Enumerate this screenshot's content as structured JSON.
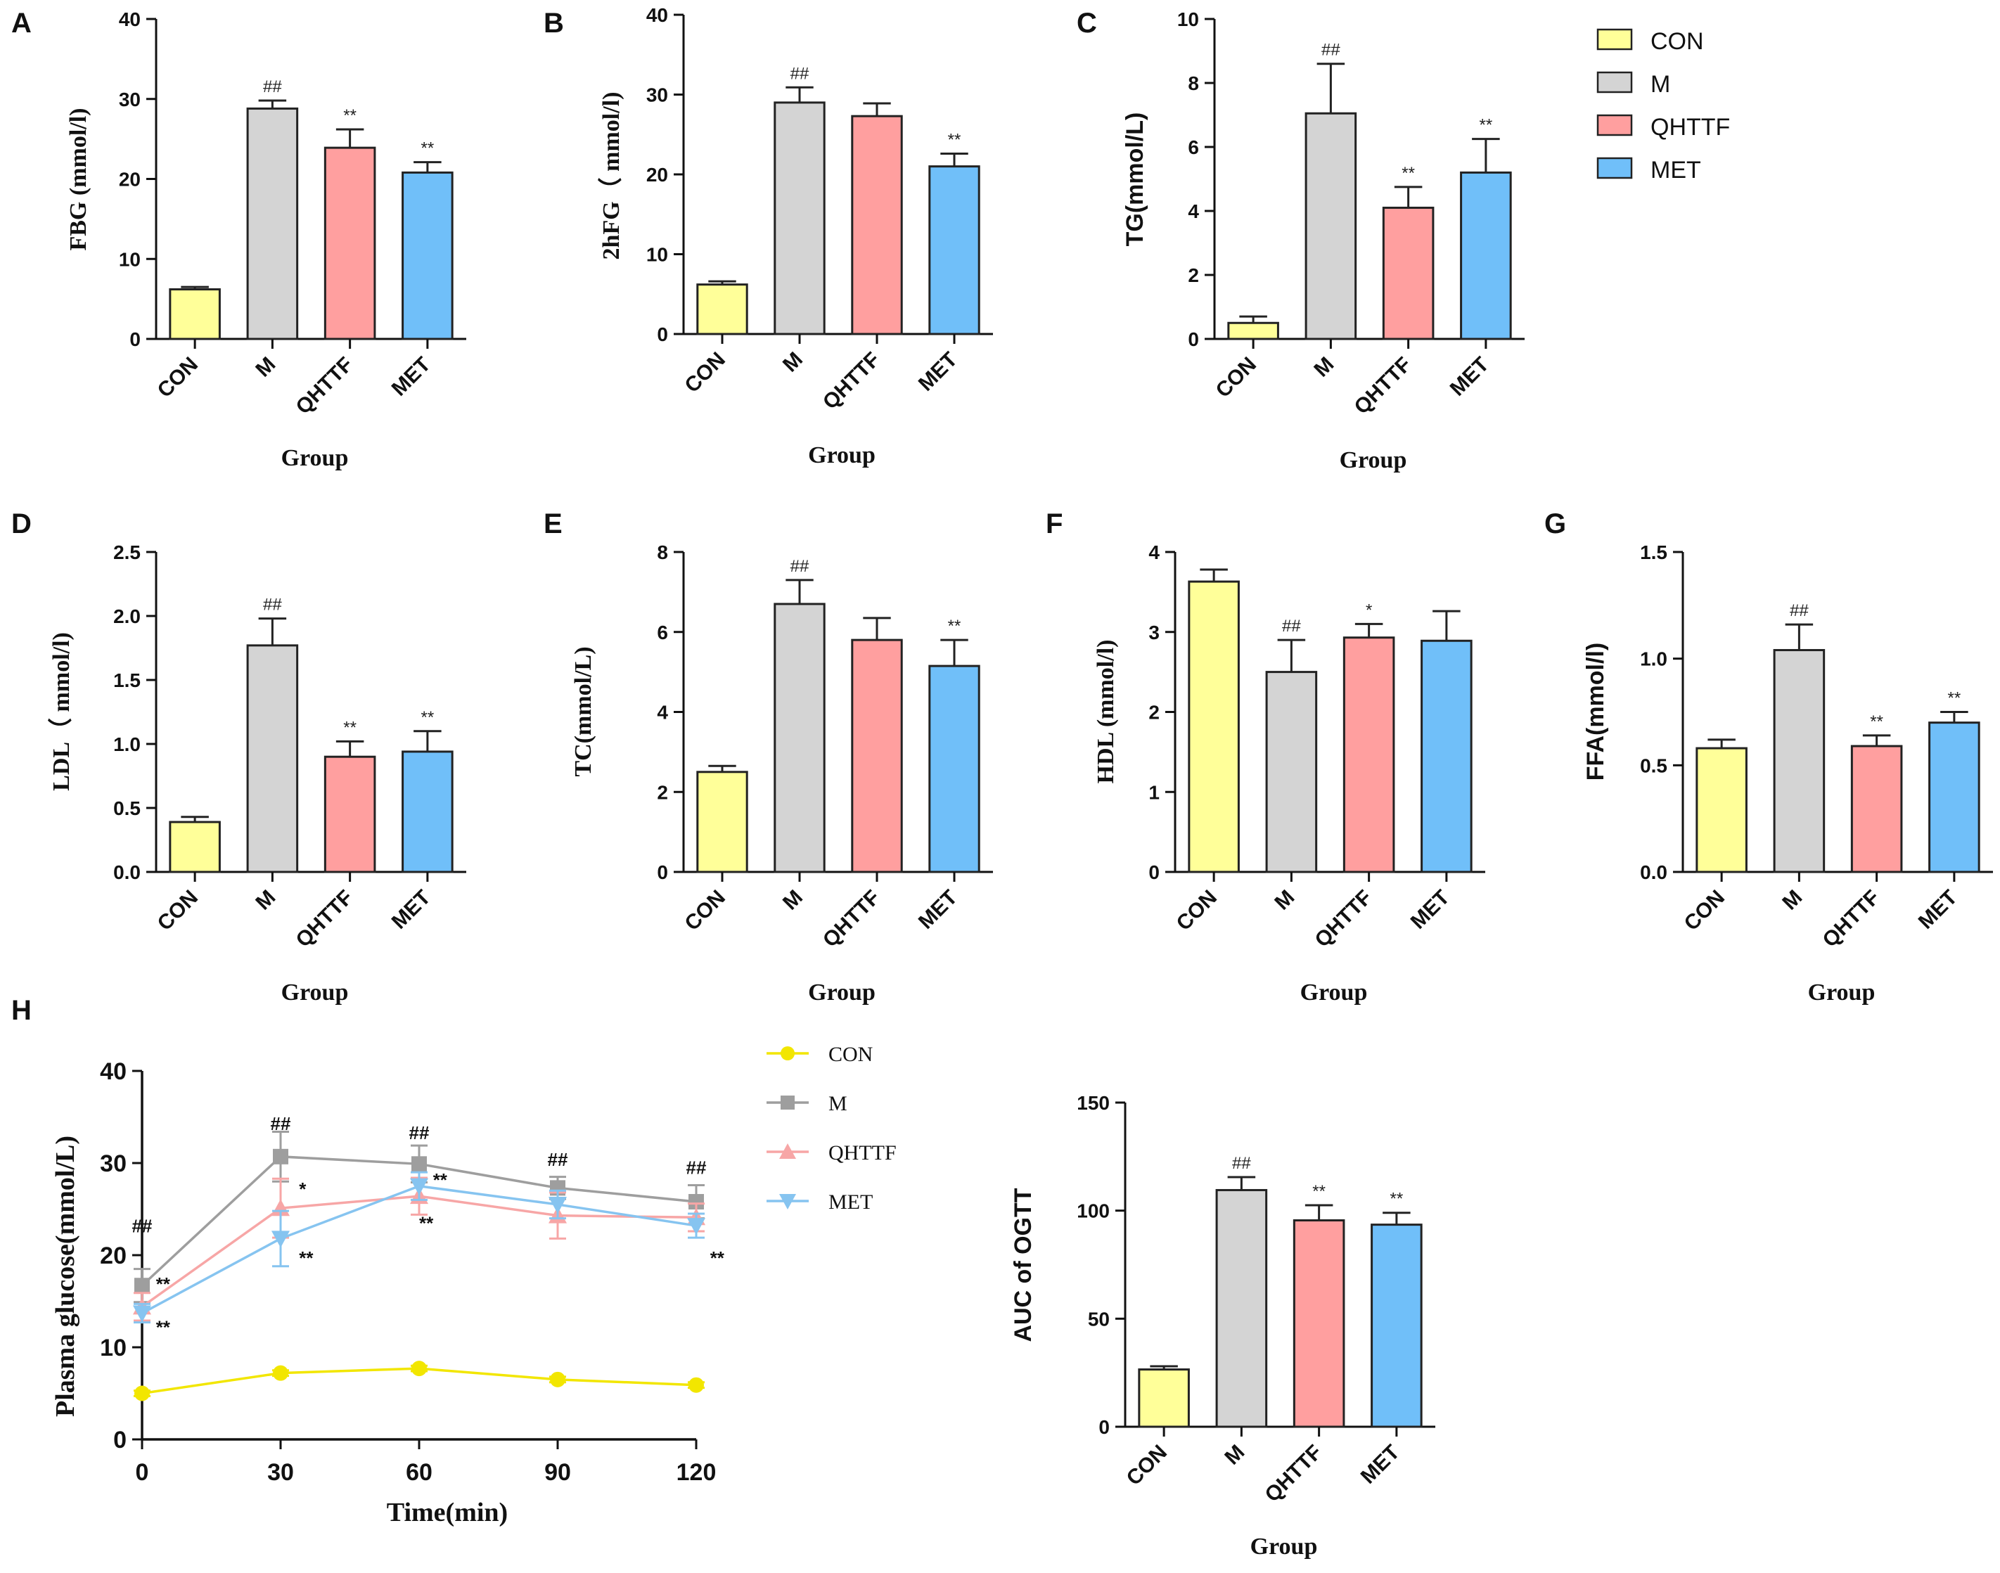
{
  "groups": [
    "CON",
    "M",
    "QHTTF",
    "MET"
  ],
  "colors": {
    "CON": "#ffff99",
    "M": "#d4d4d4",
    "QHTTF": "#ff9f9f",
    "MET": "#70bff9",
    "CON_line": "#f2e600",
    "M_line": "#9e9e9e",
    "QHTTF_line": "#f7a6a6",
    "MET_line": "#86c4f0"
  },
  "legend": {
    "items": [
      "CON",
      "M",
      "QHTTF",
      "MET"
    ]
  },
  "chart_data": [
    {
      "id": "A",
      "letter": "A",
      "type": "bar",
      "categories": [
        "CON",
        "M",
        "QHTTF",
        "MET"
      ],
      "values": [
        6.2,
        28.8,
        23.9,
        20.8
      ],
      "errors": [
        0.3,
        1.0,
        2.3,
        1.3
      ],
      "annotations": [
        "",
        "##",
        "**",
        "**"
      ],
      "ylabel": "FBG (mmol/l)",
      "xlabel": "Group",
      "ylim": [
        0,
        40
      ],
      "yticks": [
        "0",
        "10",
        "20",
        "30",
        "40"
      ]
    },
    {
      "id": "B",
      "letter": "B",
      "type": "bar",
      "categories": [
        "CON",
        "M",
        "QHTTF",
        "MET"
      ],
      "values": [
        6.2,
        29.0,
        27.3,
        21.0
      ],
      "errors": [
        0.4,
        1.9,
        1.6,
        1.6
      ],
      "annotations": [
        "",
        "##",
        "",
        "**"
      ],
      "ylabel": "2hFG（ mmol/l)",
      "xlabel": "Group",
      "ylim": [
        0,
        40
      ],
      "yticks": [
        "0",
        "10",
        "20",
        "30",
        "40"
      ]
    },
    {
      "id": "C",
      "letter": "C",
      "type": "bar",
      "categories": [
        "CON",
        "M",
        "QHTTF",
        "MET"
      ],
      "values": [
        0.5,
        7.05,
        4.1,
        5.2
      ],
      "errors": [
        0.2,
        1.55,
        0.65,
        1.05
      ],
      "annotations": [
        "",
        "##",
        "**",
        "**"
      ],
      "ylabel": "TG(mmol/L)",
      "xlabel": "Group",
      "ylim": [
        0,
        10
      ],
      "yticks": [
        "0",
        "2",
        "4",
        "6",
        "8",
        "10"
      ]
    },
    {
      "id": "D",
      "letter": "D",
      "type": "bar",
      "categories": [
        "CON",
        "M",
        "QHTTF",
        "MET"
      ],
      "values": [
        0.39,
        1.77,
        0.9,
        0.94
      ],
      "errors": [
        0.04,
        0.21,
        0.12,
        0.16
      ],
      "annotations": [
        "",
        "##",
        "**",
        "**"
      ],
      "ylabel": "LDL（ mmol/l)",
      "xlabel": "Group",
      "ylim": [
        0,
        2.5
      ],
      "yticks": [
        "0.0",
        "0.5",
        "1.0",
        "1.5",
        "2.0",
        "2.5"
      ]
    },
    {
      "id": "E",
      "letter": "E",
      "type": "bar",
      "categories": [
        "CON",
        "M",
        "QHTTF",
        "MET"
      ],
      "values": [
        2.5,
        6.7,
        5.8,
        5.15
      ],
      "errors": [
        0.15,
        0.6,
        0.55,
        0.65
      ],
      "annotations": [
        "",
        "##",
        "",
        "**"
      ],
      "ylabel": "TC(mmol/L)",
      "xlabel": "Group",
      "ylim": [
        0,
        8
      ],
      "yticks": [
        "0",
        "2",
        "4",
        "6",
        "8"
      ]
    },
    {
      "id": "F",
      "letter": "F",
      "type": "bar",
      "categories": [
        "CON",
        "M",
        "QHTTF",
        "MET"
      ],
      "values": [
        3.63,
        2.5,
        2.93,
        2.89
      ],
      "errors": [
        0.15,
        0.4,
        0.17,
        0.37
      ],
      "annotations": [
        "",
        "##",
        "*",
        ""
      ],
      "ylabel": "HDL (mmol/l)",
      "xlabel": "Group",
      "ylim": [
        0,
        4
      ],
      "yticks": [
        "0",
        "1",
        "2",
        "3",
        "4"
      ]
    },
    {
      "id": "G",
      "letter": "G",
      "type": "bar",
      "categories": [
        "CON",
        "M",
        "QHTTF",
        "MET"
      ],
      "values": [
        0.58,
        1.04,
        0.59,
        0.7
      ],
      "errors": [
        0.04,
        0.12,
        0.05,
        0.05
      ],
      "annotations": [
        "",
        "##",
        "**",
        "**"
      ],
      "ylabel": "FFA(mmol/l)",
      "xlabel": "Group",
      "ylim": [
        0,
        1.5
      ],
      "yticks": [
        "0.0",
        "0.5",
        "1.0",
        "1.5"
      ]
    },
    {
      "id": "H",
      "letter": "H",
      "type": "line",
      "x": [
        0,
        30,
        60,
        90,
        120
      ],
      "xticks": [
        "0",
        "30",
        "60",
        "90",
        "120"
      ],
      "yticks": [
        "0",
        "10",
        "20",
        "30",
        "40"
      ],
      "xlabel": "Time(min)",
      "ylabel": "Plasma glucose(mmol/L)",
      "xlim": [
        0,
        120
      ],
      "ylim": [
        0,
        40
      ],
      "series": [
        {
          "name": "CON",
          "marker": "circle",
          "values": [
            5.0,
            7.2,
            7.7,
            6.5,
            5.9
          ],
          "errors": [
            0.3,
            0.3,
            0.3,
            0.3,
            0.3
          ]
        },
        {
          "name": "M",
          "marker": "square",
          "values": [
            16.7,
            30.7,
            29.9,
            27.3,
            25.8
          ],
          "errors": [
            1.8,
            2.7,
            2.0,
            1.2,
            1.8
          ]
        },
        {
          "name": "QHTTF",
          "marker": "triangle-up",
          "values": [
            14.4,
            25.1,
            26.4,
            24.3,
            24.1
          ],
          "errors": [
            1.5,
            3.2,
            2.0,
            2.5,
            1.5
          ]
        },
        {
          "name": "MET",
          "marker": "triangle-down",
          "values": [
            13.7,
            21.8,
            27.5,
            25.5,
            23.2
          ],
          "errors": [
            1.0,
            3.0,
            1.5,
            1.5,
            1.3
          ]
        }
      ],
      "annotations": [
        {
          "text": "##",
          "x": 0,
          "y": 22.5
        },
        {
          "text": "**",
          "x": 3,
          "y": 16.2
        },
        {
          "text": "**",
          "x": 3,
          "y": 11.5
        },
        {
          "text": "##",
          "x": 30,
          "y": 33.6
        },
        {
          "text": "*",
          "x": 34,
          "y": 26.5
        },
        {
          "text": "**",
          "x": 34,
          "y": 19.0
        },
        {
          "text": "##",
          "x": 60,
          "y": 32.6
        },
        {
          "text": "**",
          "x": 63,
          "y": 27.5
        },
        {
          "text": "**",
          "x": 60,
          "y": 22.8
        },
        {
          "text": "##",
          "x": 90,
          "y": 29.7
        },
        {
          "text": "##",
          "x": 120,
          "y": 28.8
        },
        {
          "text": "**",
          "x": 123,
          "y": 19.0
        }
      ]
    },
    {
      "id": "AUC",
      "letter": "",
      "type": "bar",
      "categories": [
        "CON",
        "M",
        "QHTTF",
        "MET"
      ],
      "values": [
        26.5,
        109.5,
        95.5,
        93.5
      ],
      "errors": [
        1.5,
        6.0,
        7.0,
        5.5
      ],
      "annotations": [
        "",
        "##",
        "**",
        "**"
      ],
      "ylabel": "AUC of OGTT",
      "xlabel": "Group",
      "ylim": [
        0,
        150
      ],
      "yticks": [
        "0",
        "50",
        "100",
        "150"
      ]
    }
  ]
}
